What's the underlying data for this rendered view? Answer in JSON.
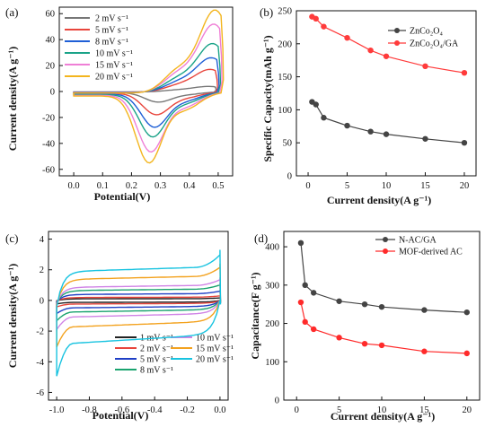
{
  "chart_data": [
    {
      "type": "line",
      "panel_label": "(a)",
      "xlabel": "Potential(V)",
      "ylabel": "Current density(A g⁻¹)",
      "xlim": [
        -0.05,
        0.55
      ],
      "ylim": [
        -65,
        65
      ],
      "x_ticks": [
        "0.0",
        "0.1",
        "0.2",
        "0.3",
        "0.4",
        "0.5"
      ],
      "y_ticks": [
        "-60",
        "-40",
        "-20",
        "0",
        "20",
        "40",
        "60"
      ],
      "legend_position": "top-left",
      "series": [
        {
          "name": "2 mV s⁻¹",
          "color": "#777777",
          "anodic_peak": 5,
          "cathodic_peak": -7,
          "vertex": 6
        },
        {
          "name": "5 mV s⁻¹",
          "color": "#e8453c",
          "anodic_peak": 18,
          "cathodic_peak": -16,
          "vertex": 17
        },
        {
          "name": "8 mV s⁻¹",
          "color": "#1f5fd6",
          "anodic_peak": 27,
          "cathodic_peak": -25,
          "vertex": 26
        },
        {
          "name": "10 mV s⁻¹",
          "color": "#1aa388",
          "anodic_peak": 38,
          "cathodic_peak": -32,
          "vertex": 36
        },
        {
          "name": "15 mV s⁻¹",
          "color": "#ef7fd6",
          "anodic_peak": 53,
          "cathodic_peak": -43,
          "vertex": 50
        },
        {
          "name": "20 mV s⁻¹",
          "color": "#f3b51e",
          "anodic_peak": 64,
          "cathodic_peak": -51,
          "vertex": 60
        }
      ]
    },
    {
      "type": "line",
      "panel_label": "(b)",
      "xlabel": "Current density(A g⁻¹)",
      "ylabel": "Specific Capacity(mAh g⁻¹)",
      "xlim": [
        -1.5,
        21.5
      ],
      "ylim": [
        0,
        250
      ],
      "x_ticks": [
        "0",
        "5",
        "10",
        "15",
        "20"
      ],
      "y_ticks": [
        "0",
        "50",
        "100",
        "150",
        "200",
        "250"
      ],
      "legend_position": "top-right",
      "x": [
        0.5,
        1,
        2,
        5,
        8,
        10,
        15,
        20
      ],
      "series": [
        {
          "name": "ZnCo₂O₄",
          "color": "#444444",
          "values": [
            112,
            108,
            88,
            76,
            67,
            63,
            56,
            50
          ]
        },
        {
          "name": "ZnCo₂O₄/GA",
          "color": "#ff3b3b",
          "values": [
            241,
            238,
            226,
            209,
            190,
            181,
            166,
            156
          ]
        }
      ]
    },
    {
      "type": "line",
      "panel_label": "(c)",
      "xlabel": "Potential(V)",
      "ylabel": "Current density(A g⁻¹)",
      "xlim": [
        -1.05,
        0.05
      ],
      "ylim": [
        -6.5,
        4.5
      ],
      "x_ticks": [
        "-1.0",
        "-0.8",
        "-0.6",
        "-0.4",
        "-0.2",
        "0.0"
      ],
      "y_ticks": [
        "-6",
        "-4",
        "-2",
        "0",
        "2",
        "4"
      ],
      "legend_position": "bottom-right",
      "series": [
        {
          "name": "1 mV s⁻¹",
          "color": "#222222",
          "upper": 0.12,
          "lower": -0.12
        },
        {
          "name": "2 mV s⁻¹",
          "color": "#e8453c",
          "upper": 0.22,
          "lower": -0.22
        },
        {
          "name": "5 mV s⁻¹",
          "color": "#1f3fc6",
          "upper": 0.45,
          "lower": -0.45
        },
        {
          "name": "8 mV s⁻¹",
          "color": "#1aa36f",
          "upper": 0.75,
          "lower": -0.7
        },
        {
          "name": "10 mV s⁻¹",
          "color": "#d083e6",
          "upper": 1.0,
          "lower": -1.0
        },
        {
          "name": "15 mV s⁻¹",
          "color": "#f3a21e",
          "upper": 1.6,
          "lower": -1.6
        },
        {
          "name": "20 mV s⁻¹",
          "color": "#18c3e0",
          "upper": 2.2,
          "lower": -2.6
        }
      ]
    },
    {
      "type": "line",
      "panel_label": "(d)",
      "xlabel": "Current density(A g⁻¹)",
      "ylabel": "Capacitance(F g⁻¹)",
      "xlim": [
        -1.5,
        21.5
      ],
      "ylim": [
        0,
        440
      ],
      "x_ticks": [
        "0",
        "5",
        "10",
        "15",
        "20"
      ],
      "y_ticks": [
        "0",
        "100",
        "200",
        "300",
        "400"
      ],
      "legend_position": "top-right",
      "x": [
        0.5,
        1,
        2,
        5,
        8,
        10,
        15,
        20
      ],
      "series": [
        {
          "name": "N-AC/GA",
          "color": "#444444",
          "values": [
            410,
            300,
            280,
            258,
            250,
            243,
            235,
            229
          ]
        },
        {
          "name": "MOF-derived AC",
          "color": "#ff2a2a",
          "values": [
            255,
            204,
            185,
            163,
            147,
            143,
            127,
            122
          ]
        }
      ]
    }
  ]
}
